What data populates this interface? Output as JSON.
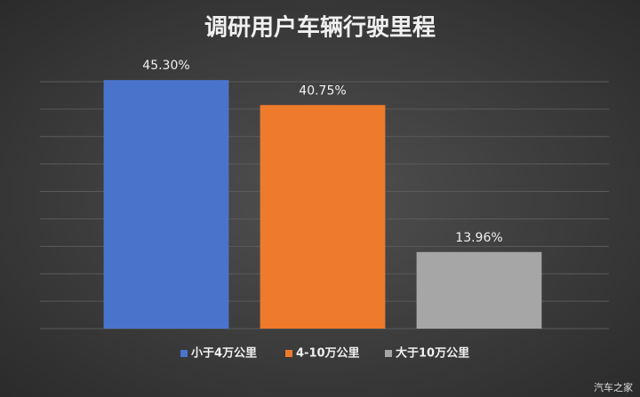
{
  "chart_data": {
    "type": "bar",
    "title": "调研用户车辆行驶里程",
    "categories": [
      "小于4万公里",
      "4-10万公里",
      "大于10万公里"
    ],
    "values": [
      45.3,
      40.75,
      13.96
    ],
    "value_labels": [
      "45.30%",
      "40.75%",
      "13.96%"
    ],
    "colors": [
      "#4a74cc",
      "#ee7a2c",
      "#a6a6a6"
    ],
    "ylim": [
      0,
      45
    ],
    "yticks": [
      0,
      5,
      10,
      15,
      20,
      25,
      30,
      35,
      40,
      45
    ],
    "grid": true,
    "legend": "bottom",
    "watermark": "汽车之家"
  }
}
